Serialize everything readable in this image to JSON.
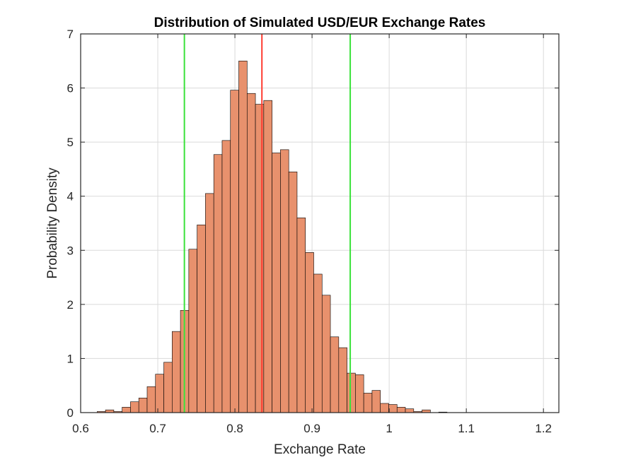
{
  "chart_data": {
    "type": "bar",
    "subtype": "histogram",
    "title": "Distribution of Simulated USD/EUR Exchange Rates",
    "xlabel": "Exchange Rate",
    "ylabel": "Probability Density",
    "xlim": [
      0.6,
      1.22
    ],
    "ylim": [
      0,
      7
    ],
    "xticks": [
      0.6,
      0.7,
      0.8,
      0.9,
      1.0,
      1.1,
      1.2
    ],
    "xtick_labels": [
      "0.6",
      "0.7",
      "0.8",
      "0.9",
      "1",
      "1.1",
      "1.2"
    ],
    "yticks": [
      0,
      1,
      2,
      3,
      4,
      5,
      6,
      7
    ],
    "ytick_labels": [
      "0",
      "1",
      "2",
      "3",
      "4",
      "5",
      "6",
      "7"
    ],
    "grid": true,
    "box": true,
    "bin_start": 0.6214,
    "bin_width": 0.0108,
    "values": [
      0.02,
      0.05,
      0.02,
      0.1,
      0.2,
      0.27,
      0.48,
      0.71,
      0.93,
      1.5,
      1.89,
      3.02,
      3.47,
      4.05,
      4.77,
      5.03,
      5.96,
      6.5,
      5.9,
      5.7,
      5.77,
      4.8,
      4.86,
      4.45,
      3.6,
      2.96,
      2.56,
      2.17,
      1.4,
      1.2,
      0.73,
      0.7,
      0.36,
      0.41,
      0.17,
      0.15,
      0.1,
      0.07,
      0.02,
      0.05,
      0.0,
      0.01,
      0.0,
      0.0,
      0.0,
      0.0,
      0.0,
      0.0,
      0.0
    ],
    "reference_lines": [
      {
        "x": 0.835,
        "color": "#ff3b30"
      },
      {
        "x": 0.7345,
        "color": "#3ae23a"
      },
      {
        "x": 0.9495,
        "color": "#3ae23a"
      }
    ],
    "colors": {
      "bar_fill": "#e8916d",
      "bar_edge": "#000000",
      "grid": "#dadada",
      "axis": "#262626"
    }
  }
}
